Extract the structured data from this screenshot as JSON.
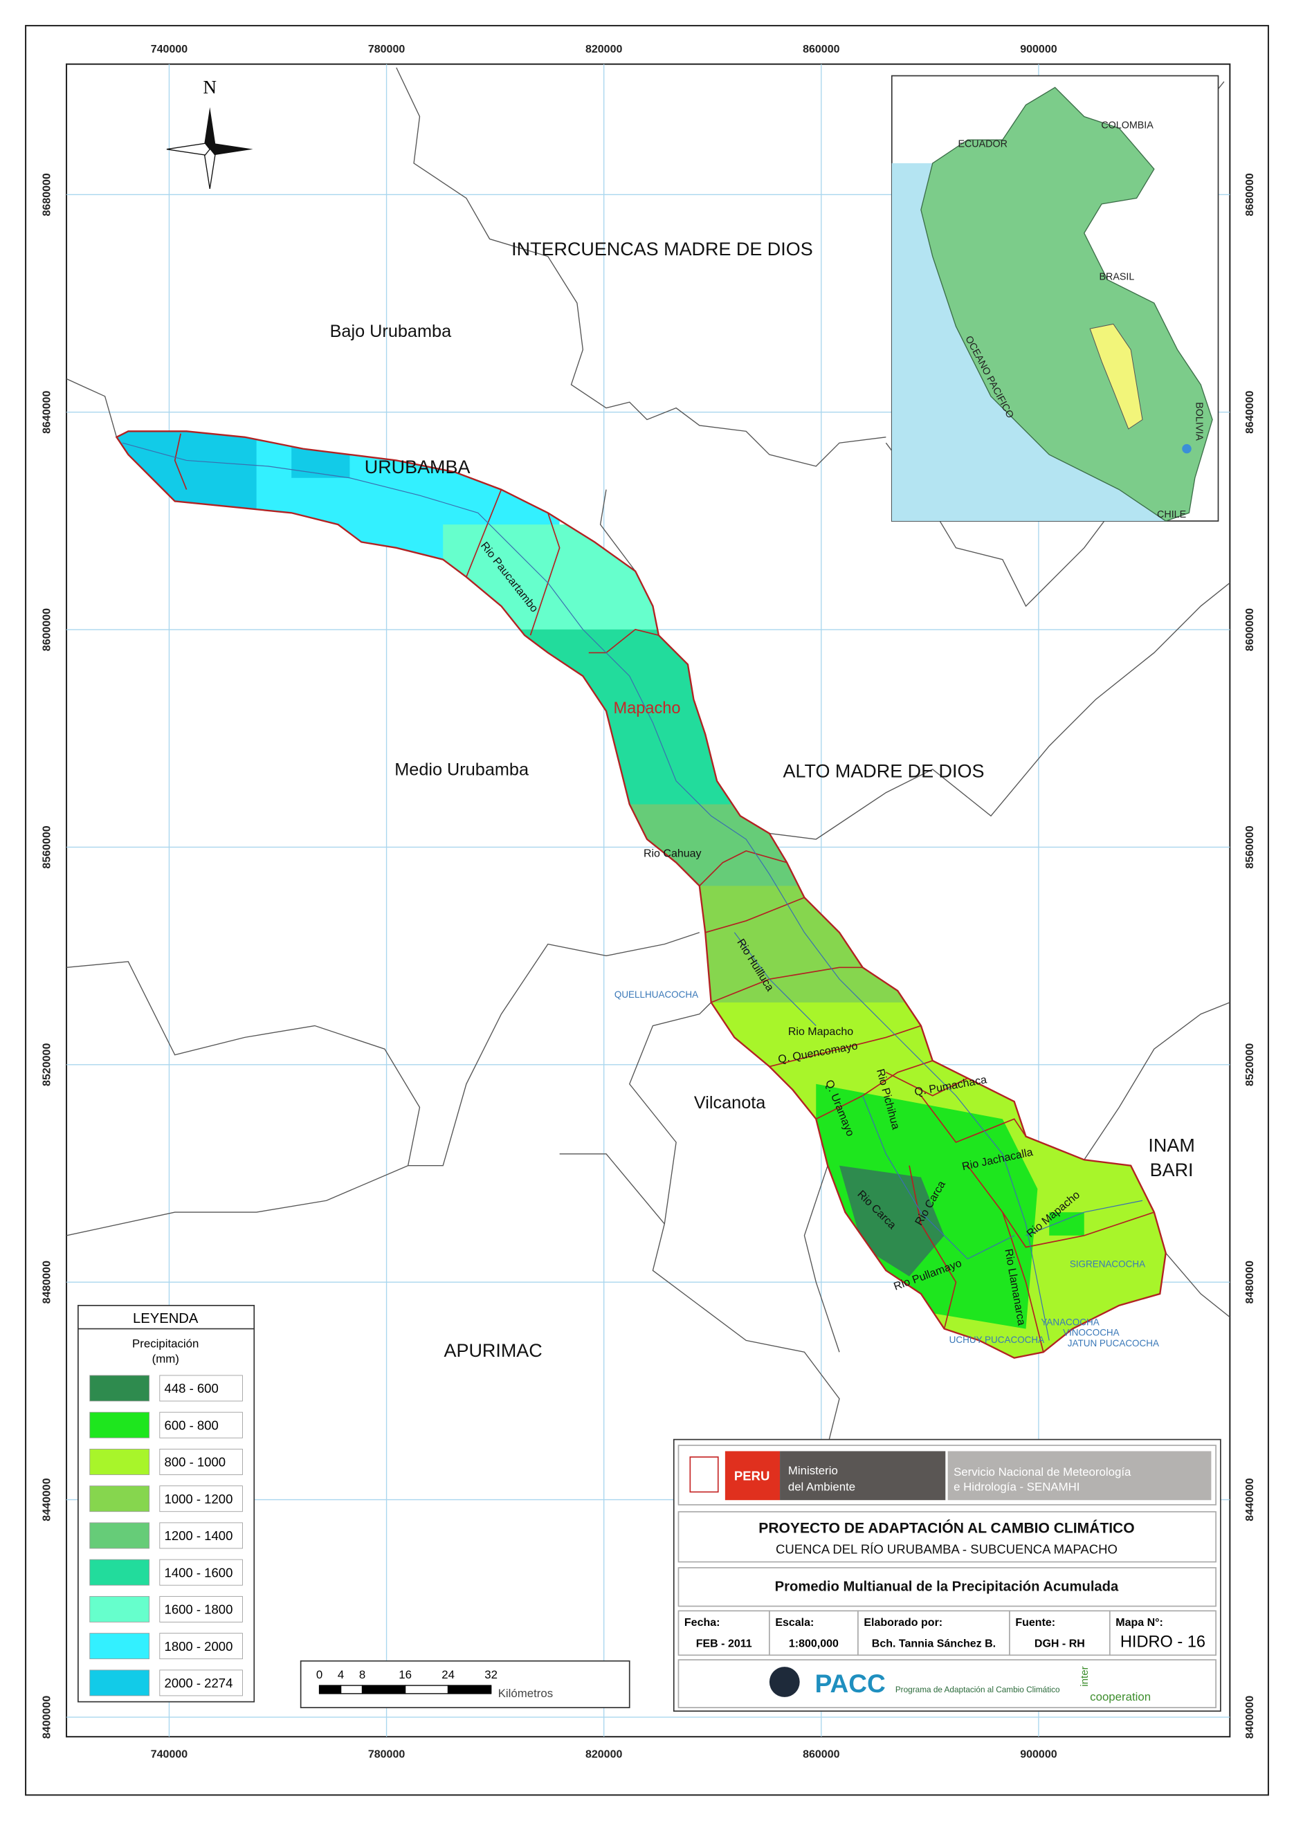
{
  "map": {
    "xticks": [
      740000,
      780000,
      820000,
      860000,
      900000
    ],
    "yticks": [
      8680000,
      8640000,
      8600000,
      8560000,
      8520000,
      8480000,
      8440000,
      8400000
    ],
    "xlim": [
      721100,
      935200
    ],
    "ylim": [
      8396400,
      8704000
    ],
    "north": "N",
    "regions": [
      "INTERCUENCAS MADRE DE DIOS",
      "Bajo Urubamba",
      "URUBAMBA",
      "Mapacho",
      "Medio Urubamba",
      "ALTO MADRE DE DIOS",
      "Vilcanota",
      "INAM",
      "BARI",
      "APURIMAC"
    ],
    "rivers": [
      "Rio Paucartambo",
      "Rio Cahuay",
      "Rio Huilluca",
      "Rio Mapacho",
      "Q. Quencomayo",
      "Q. Pumachaca",
      "Q. Uramayo",
      "Rio Pichihua",
      "Rio Jachacalla",
      "Rio Mapacho",
      "Rio Carca",
      "Rio Carca",
      "Rio Pullamayo",
      "Rio Llamanarca"
    ],
    "lakes": [
      "QUELLHUACOCHA",
      "SIGRENACOCHA",
      "YANACOCHA",
      "VINOCOCHA",
      "UCHUY PUCACOCHA",
      "JATUN PUCACOCHA"
    ]
  },
  "inset": {
    "labels": [
      "ECUADOR",
      "COLOMBIA",
      "BRASIL",
      "OCEANO PACIFICO",
      "BOLIVIA",
      "CHILE"
    ]
  },
  "legend": {
    "title": "LEYENDA",
    "subtitle": "Precipitación",
    "unit": "(mm)",
    "items": [
      {
        "label": "448 - 600",
        "color": "#2e8b4e"
      },
      {
        "label": "600 - 800",
        "color": "#1ee61e"
      },
      {
        "label": "800 - 1000",
        "color": "#a8f52a"
      },
      {
        "label": "1000 - 1200",
        "color": "#86d64e"
      },
      {
        "label": "1200 - 1400",
        "color": "#66cc78"
      },
      {
        "label": "1400 - 1600",
        "color": "#22dc9c"
      },
      {
        "label": "1600 - 1800",
        "color": "#66ffcc"
      },
      {
        "label": "1800 - 2000",
        "color": "#33f0ff"
      },
      {
        "label": "2000 - 2274",
        "color": "#12cbe8"
      }
    ]
  },
  "scale_bar": {
    "ticks": [
      0,
      4,
      8,
      16,
      24,
      32
    ],
    "unit": "Kilómetros"
  },
  "title_block": {
    "peru": "PERU",
    "ministry": [
      "Ministerio",
      "del Ambiente"
    ],
    "senamhi": [
      "Servicio Nacional de Meteorología",
      "e Hidrología - SENAMHI"
    ],
    "project": "PROYECTO DE ADAPTACIÓN AL CAMBIO CLIMÁTICO",
    "basin": "CUENCA DEL RÍO URUBAMBA - SUBCUENCA MAPACHO",
    "map_title": "Promedio Multianual de la Precipitación Acumulada",
    "fields": [
      {
        "label": "Fecha:",
        "value": "FEB - 2011"
      },
      {
        "label": "Escala:",
        "value": "1:800,000"
      },
      {
        "label": "Elaborado por:",
        "value": "Bch. Tannia Sánchez B."
      },
      {
        "label": "Fuente:",
        "value": "DGH - RH"
      },
      {
        "label": "Mapa N°:",
        "value": "HIDRO - 16"
      }
    ],
    "pacc": "PACC",
    "pacc_name": "Programa de Adaptación al Cambio Climático",
    "inter": "inter",
    "cooperation": "cooperation"
  }
}
